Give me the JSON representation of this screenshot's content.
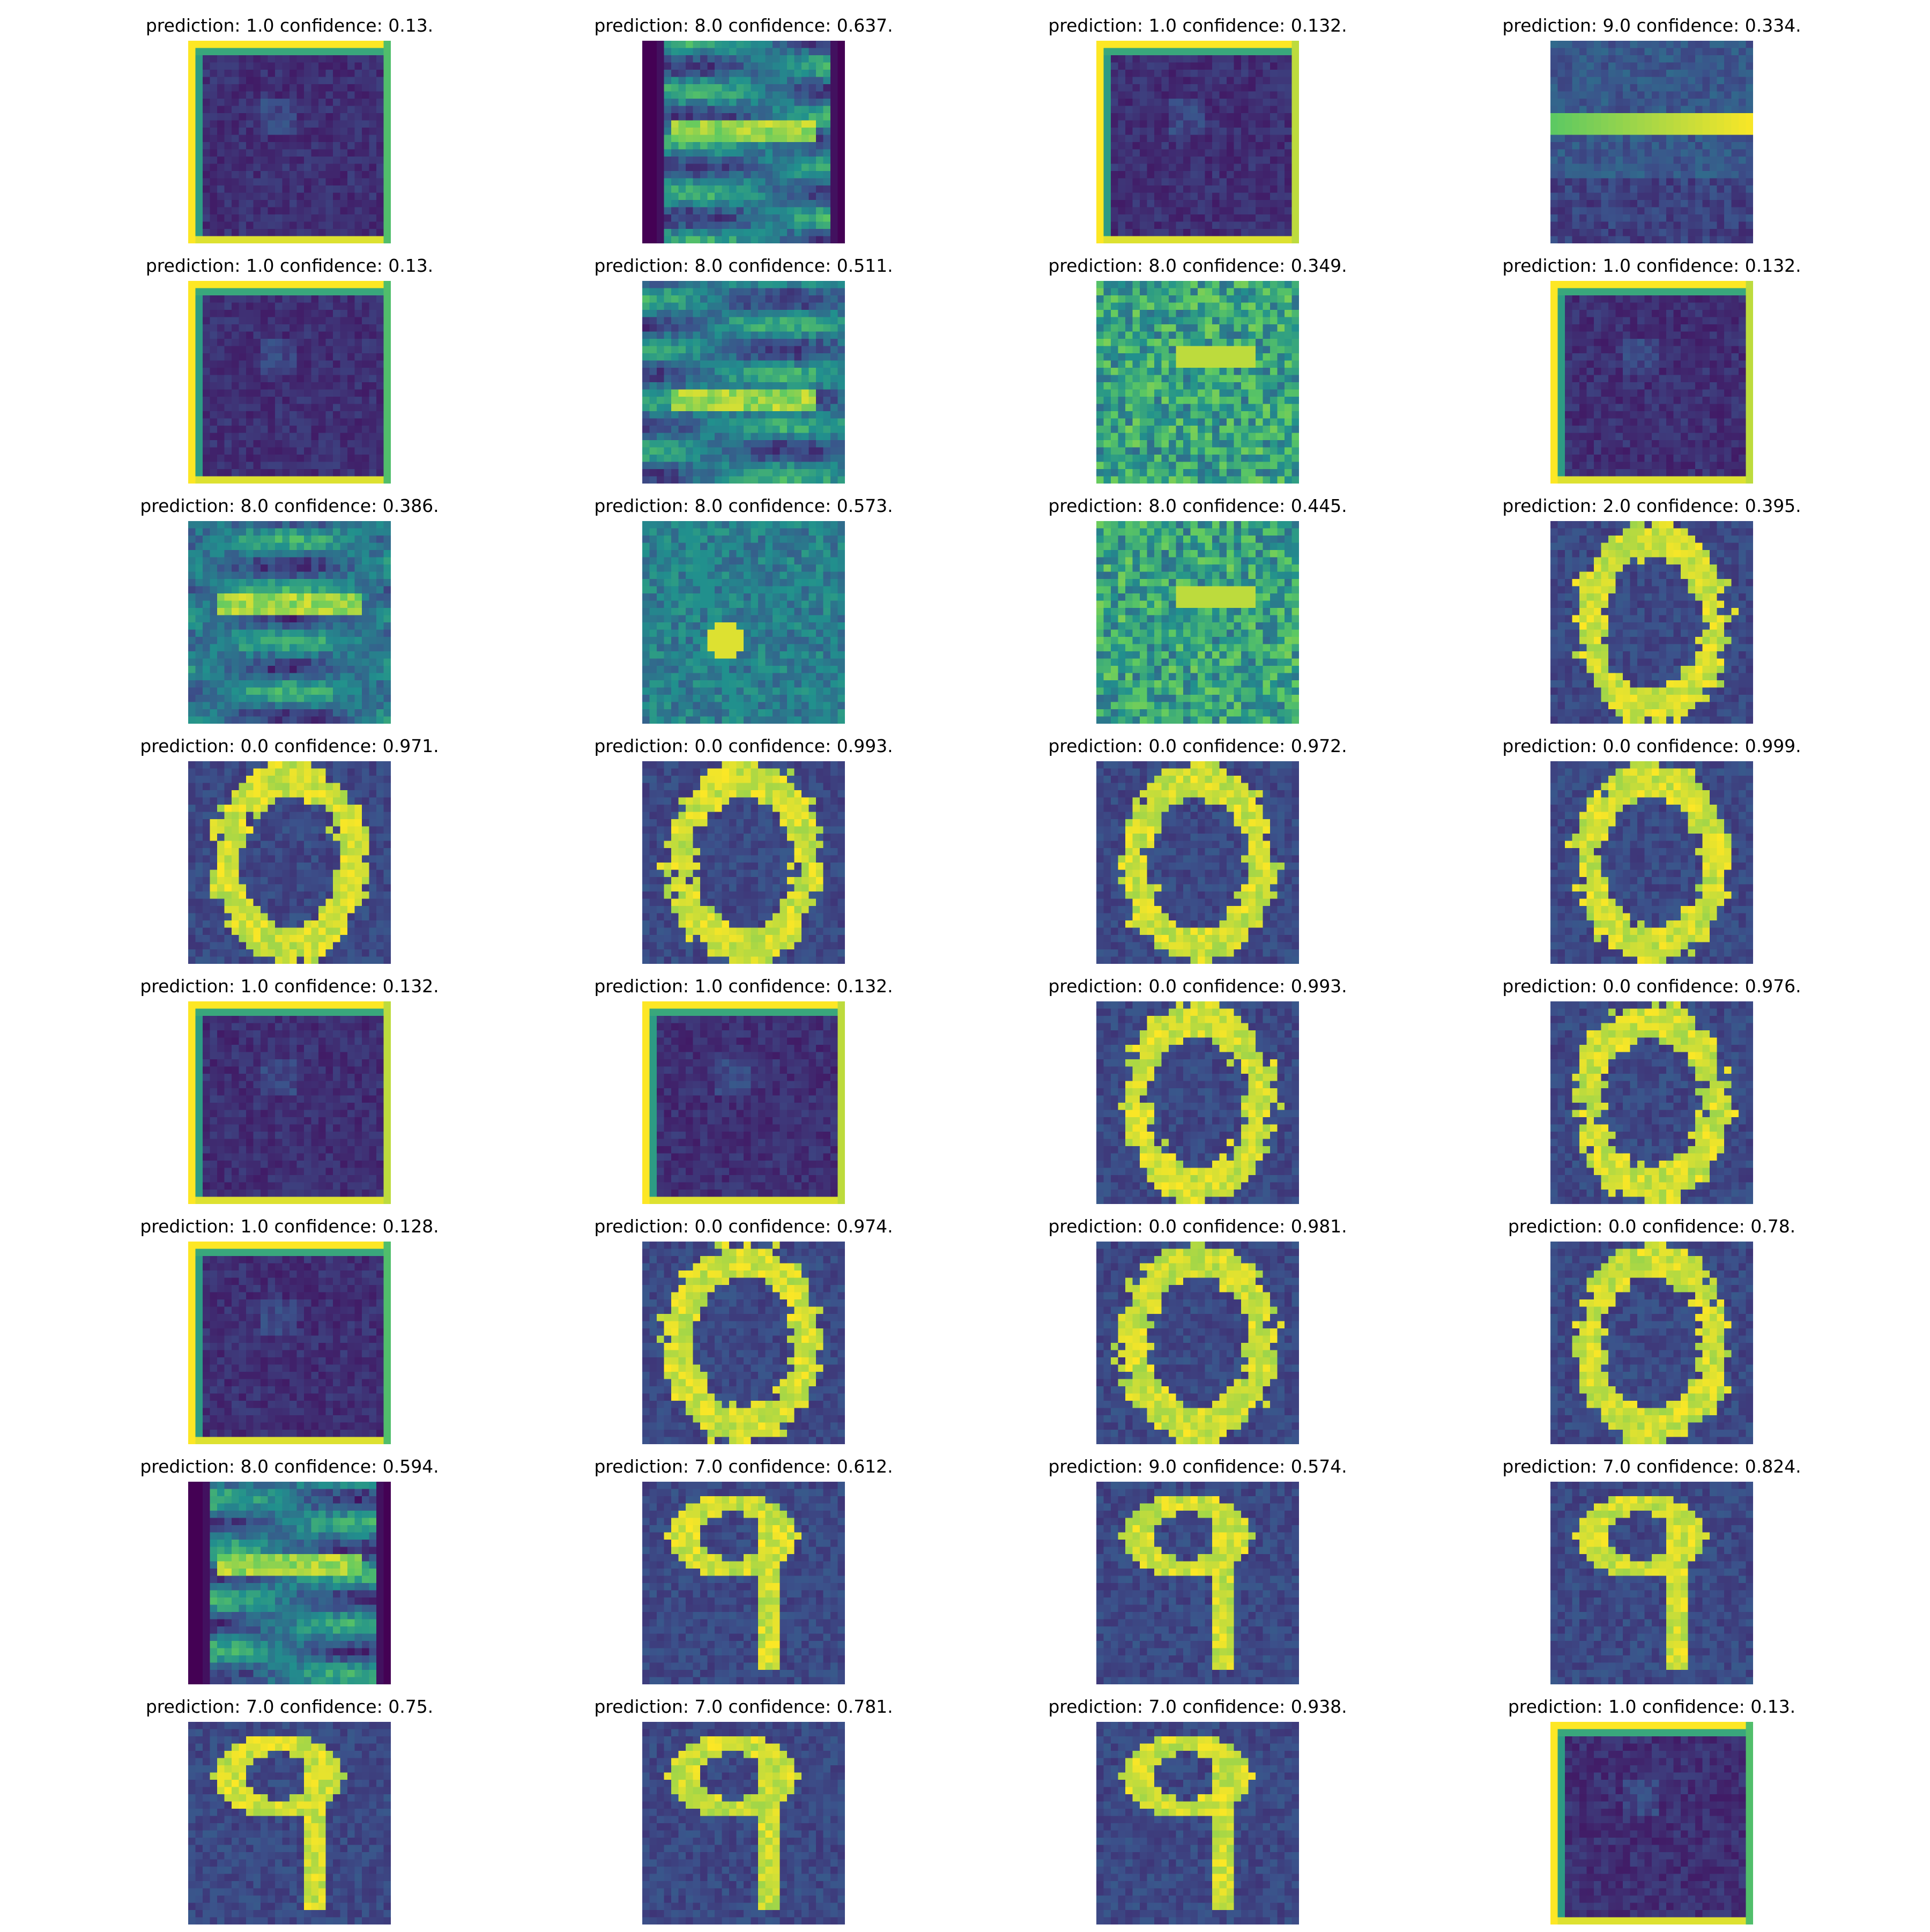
{
  "figure": {
    "colormap": "viridis",
    "colormap_stops": [
      "#440154",
      "#3b528b",
      "#21908d",
      "#5dc962",
      "#fde725"
    ],
    "rows": 8,
    "cols": 4
  },
  "panels": [
    {
      "title": "prediction: 1.0 confidence: 0.13.",
      "prediction": 1.0,
      "confidence": 0.13,
      "image_kind": "noise-frame",
      "frame": "tlb"
    },
    {
      "title": "prediction: 8.0 confidence: 0.637.",
      "prediction": 8.0,
      "confidence": 0.637,
      "image_kind": "streaks",
      "frame": "dark-lr"
    },
    {
      "title": "prediction: 1.0 confidence: 0.132.",
      "prediction": 1.0,
      "confidence": 0.132,
      "image_kind": "noise-frame",
      "frame": "tlrb"
    },
    {
      "title": "prediction: 9.0 confidence: 0.334.",
      "prediction": 9.0,
      "confidence": 0.334,
      "image_kind": "bar",
      "frame": "none"
    },
    {
      "title": "prediction: 1.0 confidence: 0.13.",
      "prediction": 1.0,
      "confidence": 0.13,
      "image_kind": "noise-frame",
      "frame": "tlb"
    },
    {
      "title": "prediction: 8.0 confidence: 0.511.",
      "prediction": 8.0,
      "confidence": 0.511,
      "image_kind": "streaks",
      "frame": "none"
    },
    {
      "title": "prediction: 8.0 confidence: 0.349.",
      "prediction": 8.0,
      "confidence": 0.349,
      "image_kind": "bright-noise",
      "frame": "none"
    },
    {
      "title": "prediction: 1.0 confidence: 0.132.",
      "prediction": 1.0,
      "confidence": 0.132,
      "image_kind": "noise-frame",
      "frame": "tlrb"
    },
    {
      "title": "prediction: 8.0 confidence: 0.386.",
      "prediction": 8.0,
      "confidence": 0.386,
      "image_kind": "streaks",
      "frame": "none"
    },
    {
      "title": "prediction: 8.0 confidence: 0.573.",
      "prediction": 8.0,
      "confidence": 0.573,
      "image_kind": "blob",
      "frame": "none"
    },
    {
      "title": "prediction: 8.0 confidence: 0.445.",
      "prediction": 8.0,
      "confidence": 0.445,
      "image_kind": "bright-noise",
      "frame": "none"
    },
    {
      "title": "prediction: 2.0 confidence: 0.395.",
      "prediction": 2.0,
      "confidence": 0.395,
      "image_kind": "zero",
      "frame": "none"
    },
    {
      "title": "prediction: 0.0 confidence: 0.971.",
      "prediction": 0.0,
      "confidence": 0.971,
      "image_kind": "zero",
      "frame": "none"
    },
    {
      "title": "prediction: 0.0 confidence: 0.993.",
      "prediction": 0.0,
      "confidence": 0.993,
      "image_kind": "zero",
      "frame": "none"
    },
    {
      "title": "prediction: 0.0 confidence: 0.972.",
      "prediction": 0.0,
      "confidence": 0.972,
      "image_kind": "zero",
      "frame": "none"
    },
    {
      "title": "prediction: 0.0 confidence: 0.999.",
      "prediction": 0.0,
      "confidence": 0.999,
      "image_kind": "zero",
      "frame": "none"
    },
    {
      "title": "prediction: 1.0 confidence: 0.132.",
      "prediction": 1.0,
      "confidence": 0.132,
      "image_kind": "noise-frame",
      "frame": "tlrb"
    },
    {
      "title": "prediction: 1.0 confidence: 0.132.",
      "prediction": 1.0,
      "confidence": 0.132,
      "image_kind": "noise-frame",
      "frame": "tlrb"
    },
    {
      "title": "prediction: 0.0 confidence: 0.993.",
      "prediction": 0.0,
      "confidence": 0.993,
      "image_kind": "zero",
      "frame": "none"
    },
    {
      "title": "prediction: 0.0 confidence: 0.976.",
      "prediction": 0.0,
      "confidence": 0.976,
      "image_kind": "zero",
      "frame": "none"
    },
    {
      "title": "prediction: 1.0 confidence: 0.128.",
      "prediction": 1.0,
      "confidence": 0.128,
      "image_kind": "noise-frame",
      "frame": "tlb"
    },
    {
      "title": "prediction: 0.0 confidence: 0.974.",
      "prediction": 0.0,
      "confidence": 0.974,
      "image_kind": "zero",
      "frame": "none"
    },
    {
      "title": "prediction: 0.0 confidence: 0.981.",
      "prediction": 0.0,
      "confidence": 0.981,
      "image_kind": "zero",
      "frame": "none"
    },
    {
      "title": "prediction: 0.0 confidence: 0.78.",
      "prediction": 0.0,
      "confidence": 0.78,
      "image_kind": "zero",
      "frame": "none"
    },
    {
      "title": "prediction: 8.0 confidence: 0.594.",
      "prediction": 8.0,
      "confidence": 0.594,
      "image_kind": "streaks",
      "frame": "dark-lr"
    },
    {
      "title": "prediction: 7.0 confidence: 0.612.",
      "prediction": 7.0,
      "confidence": 0.612,
      "image_kind": "nine",
      "frame": "none"
    },
    {
      "title": "prediction: 9.0 confidence: 0.574.",
      "prediction": 9.0,
      "confidence": 0.574,
      "image_kind": "nine",
      "frame": "none"
    },
    {
      "title": "prediction: 7.0 confidence: 0.824.",
      "prediction": 7.0,
      "confidence": 0.824,
      "image_kind": "nine",
      "frame": "none"
    },
    {
      "title": "prediction: 7.0 confidence: 0.75.",
      "prediction": 7.0,
      "confidence": 0.75,
      "image_kind": "nine",
      "frame": "none"
    },
    {
      "title": "prediction: 7.0 confidence: 0.781.",
      "prediction": 7.0,
      "confidence": 0.781,
      "image_kind": "nine",
      "frame": "none"
    },
    {
      "title": "prediction: 7.0 confidence: 0.938.",
      "prediction": 7.0,
      "confidence": 0.938,
      "image_kind": "nine",
      "frame": "none"
    },
    {
      "title": "prediction: 1.0 confidence: 0.13.",
      "prediction": 1.0,
      "confidence": 0.13,
      "image_kind": "noise-frame",
      "frame": "tlb"
    }
  ]
}
